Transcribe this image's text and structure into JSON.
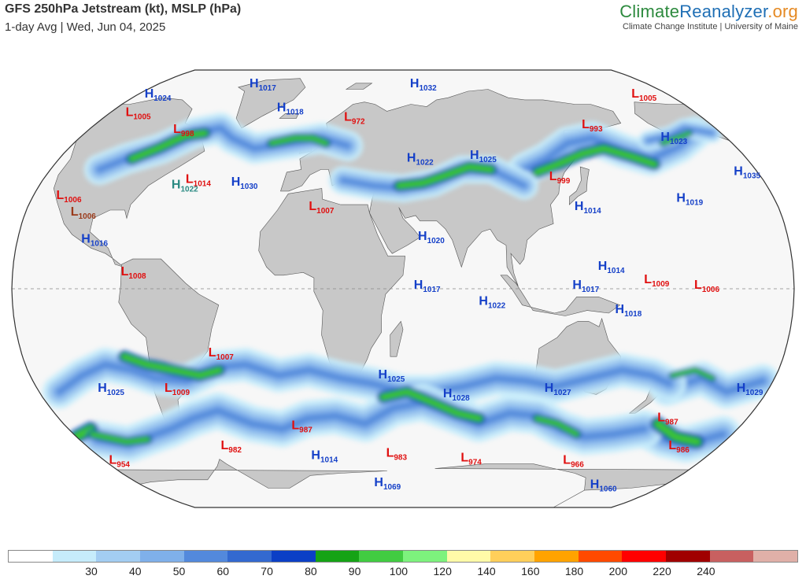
{
  "header": {
    "title": "GFS 250hPa Jetstream (kt), MSLP (hPa)",
    "subtitle": "1-day Avg | Wed, Jun 04, 2025",
    "brand_part1": "Climate",
    "brand_part2": "Reanalyzer",
    "brand_part3": ".org",
    "brand_tagline": "Climate Change Institute | University of Maine"
  },
  "map": {
    "projection": "Robinson",
    "pressure_centers": [
      {
        "type": "L",
        "value": "1005",
        "lon": -158,
        "lat": 73,
        "color": "#e01010"
      },
      {
        "type": "H",
        "value": "1024",
        "lon": -122,
        "lat": 73,
        "color": "#1540c8"
      },
      {
        "type": "H",
        "value": "1017",
        "lon": -60,
        "lat": 78,
        "color": "#1540c8"
      },
      {
        "type": "H",
        "value": "1032",
        "lon": 55,
        "lat": 78,
        "color": "#1540c8"
      },
      {
        "type": "L",
        "value": "993",
        "lon": 153,
        "lat": 60,
        "color": "#e01010"
      },
      {
        "type": "H",
        "value": "1023",
        "lon": -168,
        "lat": 55,
        "color": "#1540c8"
      },
      {
        "type": "L",
        "value": "1005",
        "lon": -118,
        "lat": 65,
        "color": "#e01010"
      },
      {
        "type": "H",
        "value": "1018",
        "lon": -28,
        "lat": 67,
        "color": "#1540c8"
      },
      {
        "type": "L",
        "value": "972",
        "lon": 15,
        "lat": 63,
        "color": "#e01010"
      },
      {
        "type": "L",
        "value": "998",
        "lon": -80,
        "lat": 58,
        "color": "#e01010"
      },
      {
        "type": "H",
        "value": "1035",
        "lon": -143,
        "lat": 42,
        "color": "#1540c8"
      },
      {
        "type": "L",
        "value": "1006",
        "lon": -118,
        "lat": 33,
        "color": "#e01010"
      },
      {
        "type": "H",
        "value": "1022",
        "lon": -64,
        "lat": 37,
        "color": "#2a8a82"
      },
      {
        "type": "L",
        "value": "1014",
        "lon": -58,
        "lat": 39,
        "color": "#e01010"
      },
      {
        "type": "H",
        "value": "1030",
        "lon": -35,
        "lat": 38,
        "color": "#1540c8"
      },
      {
        "type": "H",
        "value": "1022",
        "lon": 52,
        "lat": 47,
        "color": "#1540c8"
      },
      {
        "type": "H",
        "value": "1025",
        "lon": 85,
        "lat": 48,
        "color": "#1540c8"
      },
      {
        "type": "L",
        "value": "999",
        "lon": 123,
        "lat": 40,
        "color": "#e01010"
      },
      {
        "type": "H",
        "value": "1014",
        "lon": 132,
        "lat": 29,
        "color": "#1540c8"
      },
      {
        "type": "H",
        "value": "1019",
        "lon": -178,
        "lat": 32,
        "color": "#1540c8"
      },
      {
        "type": "L",
        "value": "1006",
        "lon": -108,
        "lat": 27,
        "color": "#9a3a1a"
      },
      {
        "type": "L",
        "value": "1007",
        "lon": 5,
        "lat": 29,
        "color": "#e01010"
      },
      {
        "type": "H",
        "value": "1016",
        "lon": -100,
        "lat": 17,
        "color": "#1540c8"
      },
      {
        "type": "H",
        "value": "1020",
        "lon": 57,
        "lat": 18,
        "color": "#1540c8"
      },
      {
        "type": "H",
        "value": "1014",
        "lon": 140,
        "lat": 7,
        "color": "#1540c8"
      },
      {
        "type": "H",
        "value": "1017",
        "lon": 128,
        "lat": 0,
        "color": "#1540c8"
      },
      {
        "type": "L",
        "value": "1009",
        "lon": 161,
        "lat": 2,
        "color": "#e01010"
      },
      {
        "type": "L",
        "value": "1006",
        "lon": -176,
        "lat": 0,
        "color": "#e01010"
      },
      {
        "type": "L",
        "value": "1008",
        "lon": -80,
        "lat": 5,
        "color": "#e01010"
      },
      {
        "type": "H",
        "value": "1017",
        "lon": 55,
        "lat": 0,
        "color": "#1540c8"
      },
      {
        "type": "H",
        "value": "1018",
        "lon": 148,
        "lat": -9,
        "color": "#1540c8"
      },
      {
        "type": "H",
        "value": "1022",
        "lon": 85,
        "lat": -6,
        "color": "#1540c8"
      },
      {
        "type": "L",
        "value": "1007",
        "lon": -42,
        "lat": -25,
        "color": "#e01010"
      },
      {
        "type": "H",
        "value": "1025",
        "lon": 38,
        "lat": -33,
        "color": "#1540c8"
      },
      {
        "type": "H",
        "value": "1029",
        "lon": -145,
        "lat": -38,
        "color": "#1540c8"
      },
      {
        "type": "H",
        "value": "1025",
        "lon": -101,
        "lat": -38,
        "color": "#1540c8"
      },
      {
        "type": "L",
        "value": "1009",
        "lon": -68,
        "lat": -38,
        "color": "#e01010"
      },
      {
        "type": "H",
        "value": "1028",
        "lon": 70,
        "lat": -40,
        "color": "#1540c8"
      },
      {
        "type": "H",
        "value": "1027",
        "lon": 120,
        "lat": -38,
        "color": "#1540c8"
      },
      {
        "type": "L",
        "value": "987",
        "lon": -176,
        "lat": -49,
        "color": "#e01010"
      },
      {
        "type": "L",
        "value": "987",
        "lon": -10,
        "lat": -52,
        "color": "#e01010"
      },
      {
        "type": "L",
        "value": "986",
        "lon": -157,
        "lat": -60,
        "color": "#e01010"
      },
      {
        "type": "L",
        "value": "982",
        "lon": -55,
        "lat": -60,
        "color": "#e01010"
      },
      {
        "type": "H",
        "value": "1014",
        "lon": -5,
        "lat": -64,
        "color": "#1540c8"
      },
      {
        "type": "L",
        "value": "983",
        "lon": 40,
        "lat": -63,
        "color": "#e01010"
      },
      {
        "type": "L",
        "value": "974",
        "lon": 85,
        "lat": -65,
        "color": "#e01010"
      },
      {
        "type": "L",
        "value": "966",
        "lon": 148,
        "lat": -66,
        "color": "#e01010"
      },
      {
        "type": "L",
        "value": "954",
        "lon": -130,
        "lat": -66,
        "color": "#e01010"
      },
      {
        "type": "H",
        "value": "1060",
        "lon": -178,
        "lat": -77,
        "color": "#1540c8"
      },
      {
        "type": "H",
        "value": "1069",
        "lon": 30,
        "lat": -76,
        "color": "#1540c8"
      }
    ],
    "jets": [
      {
        "level": 60,
        "lon": [
          112,
          125,
          140,
          155,
          168,
          180,
          200,
          215
        ],
        "lat": [
          44,
          48,
          54,
          56,
          51,
          48,
          53,
          58
        ],
        "width": 24
      },
      {
        "level": 100,
        "lon": [
          118,
          130,
          145,
          158,
          170,
          180
        ],
        "lat": [
          43,
          46,
          50,
          52,
          49,
          46
        ],
        "width": 10
      },
      {
        "level": 60,
        "lon": [
          -175,
          -160,
          -148,
          -135,
          -120
        ],
        "lat": [
          55,
          57,
          60,
          58,
          50
        ],
        "width": 14
      },
      {
        "level": 100,
        "lon": [
          -168,
          -158,
          -148
        ],
        "lat": [
          54,
          56,
          58
        ],
        "width": 6
      },
      {
        "level": 60,
        "lon": [
          -105,
          -95,
          -80,
          -68,
          -55,
          -45,
          -30,
          -12,
          5,
          20
        ],
        "lat": [
          44,
          48,
          52,
          58,
          60,
          56,
          52,
          54,
          56,
          53
        ],
        "width": 22
      },
      {
        "level": 100,
        "lon": [
          -92,
          -82,
          -72,
          -62
        ],
        "lat": [
          48,
          52,
          57,
          58
        ],
        "width": 10
      },
      {
        "level": 100,
        "lon": [
          -22,
          -10,
          0,
          8
        ],
        "lat": [
          54,
          56,
          56,
          54
        ],
        "width": 8
      },
      {
        "level": 60,
        "lon": [
          20,
          35,
          50,
          65,
          80,
          95,
          110
        ],
        "lat": [
          40,
          38,
          37,
          39,
          44,
          44,
          38
        ],
        "width": 20
      },
      {
        "level": 100,
        "lon": [
          48,
          60,
          72,
          84,
          95
        ],
        "lat": [
          38,
          39,
          42,
          45,
          44
        ],
        "width": 10
      },
      {
        "level": 60,
        "lon": [
          -180,
          -165,
          -150,
          -135,
          -120,
          -105,
          -92,
          -80,
          -70,
          -55,
          -40,
          -25,
          -10,
          5,
          20,
          35,
          50,
          65,
          80,
          95,
          110,
          125,
          140,
          155,
          170,
          180
        ],
        "lat": [
          -37,
          -33,
          -38,
          -34,
          -38,
          -32,
          -28,
          -30,
          -33,
          -34,
          -29,
          -28,
          -32,
          -30,
          -33,
          -35,
          -38,
          -38,
          -36,
          -33,
          -34,
          -36,
          -33,
          -30,
          -32,
          -35
        ],
        "width": 24
      },
      {
        "level": 60,
        "lon": [
          -180,
          -165,
          -150,
          -135,
          -120,
          -105,
          -90,
          -75,
          -60,
          -45,
          -30,
          -15,
          0,
          15,
          30,
          45,
          60,
          75,
          90,
          105,
          120,
          135,
          150,
          165,
          180
        ],
        "lat": [
          -52,
          -56,
          -58,
          -54,
          -56,
          -58,
          -55,
          -52,
          -48,
          -45,
          -50,
          -52,
          -48,
          -47,
          -50,
          -44,
          -42,
          -46,
          -50,
          -46,
          -47,
          -52,
          -55,
          -54,
          -52
        ],
        "width": 26
      },
      {
        "level": 100,
        "lon": [
          -82,
          -72,
          -60,
          -48,
          -38
        ],
        "lat": [
          -25,
          -28,
          -30,
          -32,
          -30
        ],
        "width": 10
      },
      {
        "level": 100,
        "lon": [
          -175,
          -160,
          -145,
          -130,
          -118
        ],
        "lat": [
          -50,
          -55,
          -57,
          -55,
          -52
        ],
        "width": 12
      },
      {
        "level": 100,
        "lon": [
          40,
          52,
          65,
          78,
          90
        ],
        "lat": [
          -40,
          -38,
          -42,
          -46,
          -48
        ],
        "width": 10
      },
      {
        "level": 100,
        "lon": [
          -120,
          -105,
          -92
        ],
        "lat": [
          -54,
          -57,
          -56
        ],
        "width": 8
      },
      {
        "level": 100,
        "lon": [
          120,
          132,
          145
        ],
        "lat": [
          -48,
          -50,
          -54
        ],
        "width": 8
      },
      {
        "level": 100,
        "lon": [
          -180,
          -170,
          -160
        ],
        "lat": [
          -32,
          -30,
          -33
        ],
        "width": 6
      }
    ]
  },
  "legend": {
    "colors": [
      "#ffffff",
      "#c6ecfb",
      "#a3cdf2",
      "#7fb0ea",
      "#5389dc",
      "#3369d0",
      "#0b3fc6",
      "#15a315",
      "#41cc41",
      "#7df27d",
      "#fffaa8",
      "#ffcf5a",
      "#ffa300",
      "#ff4a00",
      "#ff0000",
      "#a00000",
      "#c86060",
      "#e0b0a8"
    ],
    "tick_labels": [
      "30",
      "40",
      "50",
      "60",
      "70",
      "80",
      "90",
      "100",
      "120",
      "140",
      "160",
      "180",
      "200",
      "220",
      "240"
    ]
  }
}
